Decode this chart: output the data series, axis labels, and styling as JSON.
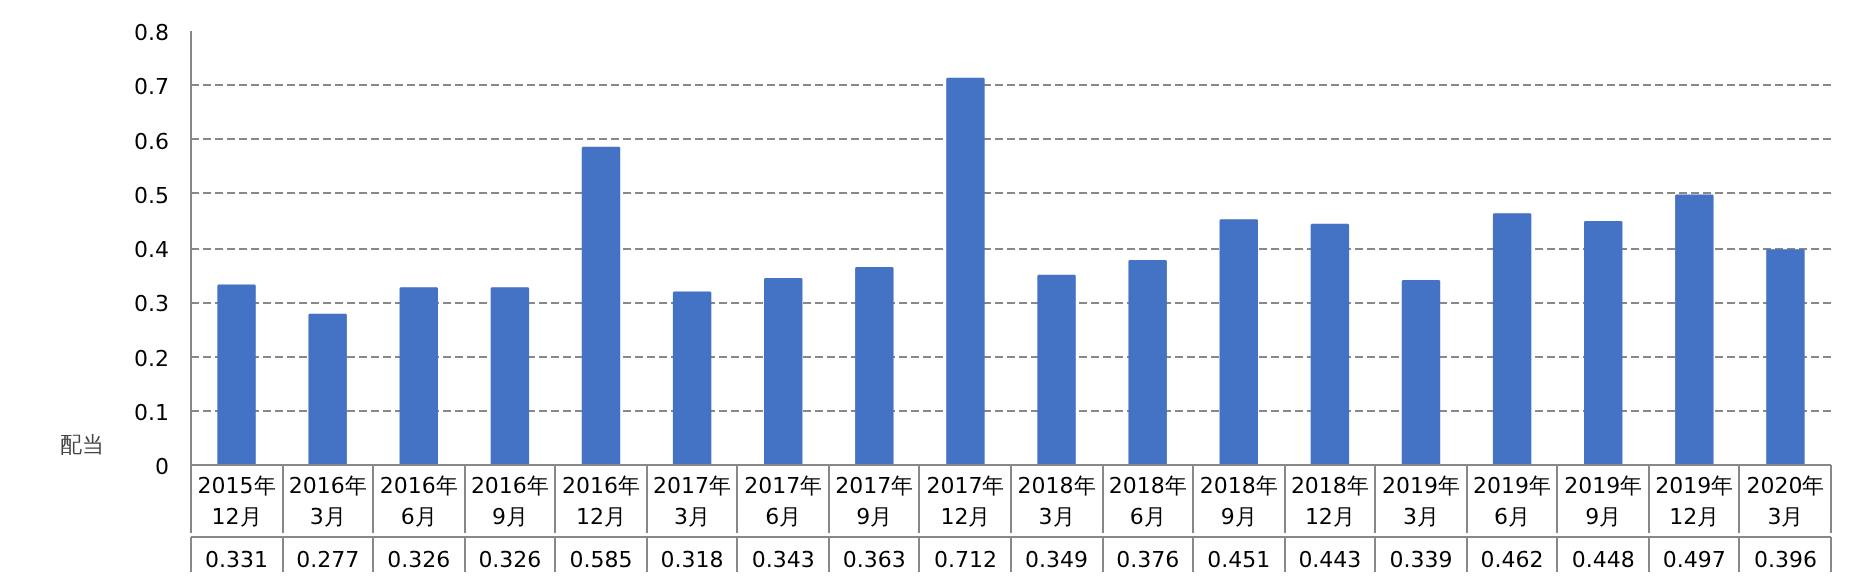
{
  "chart_data": {
    "type": "bar",
    "categories": [
      "2015年\n12月",
      "2016年\n3月",
      "2016年\n6月",
      "2016年\n9月",
      "2016年\n12月",
      "2017年\n3月",
      "2017年\n6月",
      "2017年\n9月",
      "2017年\n12月",
      "2018年\n3月",
      "2018年\n6月",
      "2018年\n9月",
      "2018年\n12月",
      "2019年\n3月",
      "2019年\n6月",
      "2019年\n9月",
      "2019年\n12月",
      "2020年\n3月"
    ],
    "series": [
      {
        "name": "配当",
        "color": "#4472c4",
        "values": [
          0.331,
          0.277,
          0.326,
          0.326,
          0.585,
          0.318,
          0.343,
          0.363,
          0.712,
          0.349,
          0.376,
          0.451,
          0.443,
          0.339,
          0.462,
          0.448,
          0.497,
          0.396
        ]
      }
    ],
    "ylim": [
      0,
      0.8
    ],
    "yticks": [
      0,
      0.1,
      0.2,
      0.3,
      0.4,
      0.5,
      0.6,
      0.7,
      0.8
    ],
    "grid": "y",
    "data_labels": true,
    "legend": "bottom"
  }
}
